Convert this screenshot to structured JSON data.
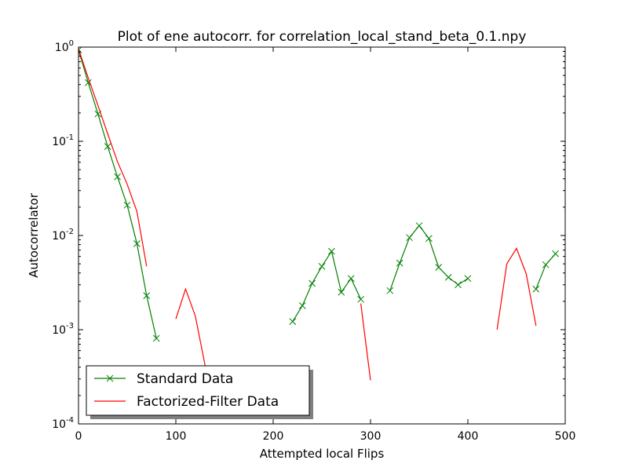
{
  "chart_data": {
    "type": "line",
    "title": "Plot of ene autocorr. for correlation_local_stand_beta_0.1.npy",
    "xlabel": "Attempted local Flips",
    "ylabel": "Autocorrelator",
    "xlim": [
      0,
      500
    ],
    "ylim": [
      0.0001,
      1
    ],
    "yscale": "log",
    "grid": false,
    "legend_position": "lower-left",
    "x_ticks": [
      {
        "value": 0,
        "label": "0"
      },
      {
        "value": 100,
        "label": "100"
      },
      {
        "value": 200,
        "label": "200"
      },
      {
        "value": 300,
        "label": "300"
      },
      {
        "value": 400,
        "label": "400"
      },
      {
        "value": 500,
        "label": "500"
      }
    ],
    "y_ticks": [
      {
        "value": 1,
        "base": "10",
        "exp": "0"
      },
      {
        "value": 0.1,
        "base": "10",
        "exp": "-1"
      },
      {
        "value": 0.01,
        "base": "10",
        "exp": "-2"
      },
      {
        "value": 0.001,
        "base": "10",
        "exp": "-3"
      },
      {
        "value": 0.0001,
        "base": "10",
        "exp": "-4"
      }
    ],
    "series": [
      {
        "name": "Standard Data",
        "color": "#008000",
        "marker": "x",
        "segments": [
          [
            [
              0,
              0.93
            ],
            [
              10,
              0.42
            ],
            [
              20,
              0.195
            ],
            [
              30,
              0.088
            ],
            [
              40,
              0.042
            ],
            [
              50,
              0.021
            ],
            [
              60,
              0.0082
            ],
            [
              70,
              0.0023
            ],
            [
              80,
              0.00081
            ]
          ],
          [
            [
              220,
              0.00122
            ],
            [
              230,
              0.0018
            ],
            [
              240,
              0.0031
            ],
            [
              250,
              0.0047
            ],
            [
              260,
              0.0068
            ],
            [
              270,
              0.0025
            ],
            [
              280,
              0.0035
            ],
            [
              290,
              0.0021
            ]
          ],
          [
            [
              320,
              0.0026
            ],
            [
              330,
              0.0051
            ],
            [
              340,
              0.0095
            ],
            [
              350,
              0.0127
            ],
            [
              360,
              0.0093
            ],
            [
              370,
              0.0046
            ],
            [
              380,
              0.0036
            ],
            [
              390,
              0.003
            ],
            [
              400,
              0.0035
            ]
          ],
          [
            [
              470,
              0.0027
            ],
            [
              480,
              0.0049
            ],
            [
              490,
              0.0064
            ]
          ]
        ]
      },
      {
        "name": "Factorized-Filter Data",
        "color": "#ff0000",
        "marker": "none",
        "segments": [
          [
            [
              0,
              0.96
            ],
            [
              10,
              0.47
            ],
            [
              20,
              0.24
            ],
            [
              30,
              0.12
            ],
            [
              40,
              0.061
            ],
            [
              50,
              0.035
            ],
            [
              60,
              0.018
            ],
            [
              70,
              0.0047
            ]
          ],
          [
            [
              100,
              0.0013
            ],
            [
              110,
              0.0027
            ],
            [
              120,
              0.0014
            ],
            [
              130,
              0.00042
            ],
            [
              140,
              0.00022
            ]
          ],
          [
            [
              290,
              0.0019
            ],
            [
              300,
              0.00029
            ]
          ],
          [
            [
              430,
              0.001
            ],
            [
              440,
              0.005
            ],
            [
              450,
              0.0073
            ],
            [
              460,
              0.0039
            ],
            [
              470,
              0.0011
            ]
          ]
        ]
      }
    ]
  }
}
